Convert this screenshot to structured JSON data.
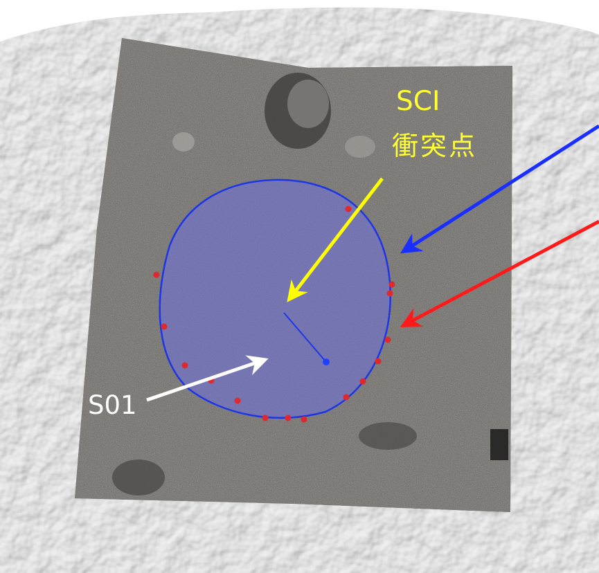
{
  "labels": {
    "sci_line1": "SCI",
    "sci_line2": "衝突点",
    "s01": "S01"
  },
  "colors": {
    "sci_label": "#ffff33",
    "s01_label": "#ffffff",
    "blue_arrow": "#1a2eff",
    "red_arrow": "#ff1a1a",
    "yellow_arrow": "#ffff00",
    "white_arrow": "#ffffff",
    "circle_fill": "#6e70e0",
    "circle_outline": "#1e35e6",
    "rim_points": "#e0282f",
    "shape_model": "#e8e8e8",
    "photo_mosaic": "#6f6d6a"
  }
}
